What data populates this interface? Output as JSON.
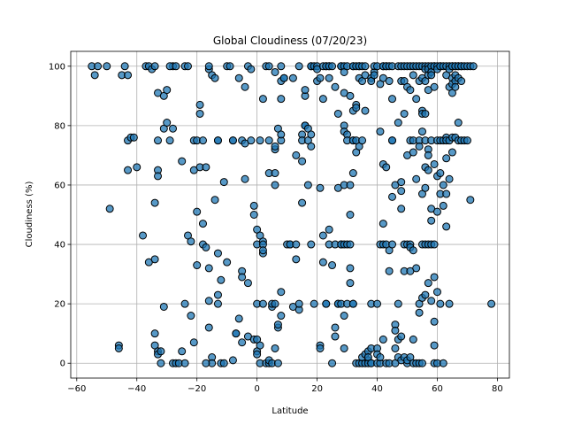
{
  "chart_data": {
    "type": "scatter",
    "title": "Global Cloudiness (07/20/23)",
    "xlabel": "Latitude",
    "ylabel": "Cloudiness (%)",
    "xlim": [
      -62,
      84
    ],
    "ylim": [
      -5,
      105
    ],
    "xticks": [
      -60,
      -40,
      -20,
      0,
      20,
      40,
      60,
      80
    ],
    "yticks": [
      0,
      20,
      40,
      60,
      80,
      100
    ],
    "grid": true,
    "marker_fill": "#1f77b4",
    "marker_edge": "#000000",
    "points": [
      [
        -55,
        100
      ],
      [
        -53,
        100
      ],
      [
        -50,
        100
      ],
      [
        -54,
        97
      ],
      [
        -49,
        52
      ],
      [
        -46,
        6
      ],
      [
        -46,
        5
      ],
      [
        -45,
        97
      ],
      [
        -44,
        100
      ],
      [
        -43,
        75
      ],
      [
        -42,
        76
      ],
      [
        -41,
        76
      ],
      [
        -43,
        97
      ],
      [
        -43,
        65
      ],
      [
        -40,
        66
      ],
      [
        -38,
        43
      ],
      [
        -37,
        100
      ],
      [
        -36,
        100
      ],
      [
        -35,
        99
      ],
      [
        -34,
        100
      ],
      [
        -36,
        34
      ],
      [
        -34,
        35
      ],
      [
        -34,
        54
      ],
      [
        -33,
        91
      ],
      [
        -33,
        75
      ],
      [
        -33,
        65
      ],
      [
        -33,
        63
      ],
      [
        -34,
        10
      ],
      [
        -34,
        6
      ],
      [
        -33,
        4
      ],
      [
        -33,
        3
      ],
      [
        -32,
        0
      ],
      [
        -32,
        4
      ],
      [
        -31,
        90
      ],
      [
        -30,
        92
      ],
      [
        -31,
        19
      ],
      [
        -31,
        79
      ],
      [
        -30,
        81
      ],
      [
        -29,
        75
      ],
      [
        -28,
        79
      ],
      [
        -28,
        100
      ],
      [
        -29,
        100
      ],
      [
        -27,
        100
      ],
      [
        -28,
        0
      ],
      [
        -27,
        0
      ],
      [
        -26,
        0
      ],
      [
        -25,
        68
      ],
      [
        -25,
        4
      ],
      [
        -24,
        20
      ],
      [
        -24,
        0
      ],
      [
        -24,
        100
      ],
      [
        -23,
        100
      ],
      [
        -23,
        43
      ],
      [
        -22,
        41
      ],
      [
        -22,
        16
      ],
      [
        -21,
        7
      ],
      [
        -21,
        65
      ],
      [
        -21,
        75
      ],
      [
        -20,
        75
      ],
      [
        -20,
        33
      ],
      [
        -20,
        51
      ],
      [
        -19,
        66
      ],
      [
        -19,
        87
      ],
      [
        -19,
        84
      ],
      [
        -18,
        75
      ],
      [
        -18,
        47
      ],
      [
        -18,
        40
      ],
      [
        -17,
        66
      ],
      [
        -17,
        39
      ],
      [
        -16,
        99
      ],
      [
        -16,
        100
      ],
      [
        -16,
        32
      ],
      [
        -16,
        21
      ],
      [
        -16,
        12
      ],
      [
        -15,
        2
      ],
      [
        -15,
        0
      ],
      [
        -17,
        0
      ],
      [
        -15,
        97
      ],
      [
        -14,
        96
      ],
      [
        -14,
        55
      ],
      [
        -13,
        75
      ],
      [
        -13,
        75
      ],
      [
        -13,
        37
      ],
      [
        -13,
        23
      ],
      [
        -13,
        20
      ],
      [
        -12,
        28
      ],
      [
        -12,
        0
      ],
      [
        -11,
        61
      ],
      [
        -11,
        0
      ],
      [
        -10,
        34
      ],
      [
        -10,
        100
      ],
      [
        -9,
        100
      ],
      [
        -8,
        75
      ],
      [
        -8,
        75
      ],
      [
        -8,
        1
      ],
      [
        -7,
        10
      ],
      [
        -7,
        10
      ],
      [
        -6,
        15
      ],
      [
        -6,
        96
      ],
      [
        -5,
        75
      ],
      [
        -5,
        31
      ],
      [
        -5,
        29
      ],
      [
        -5,
        7
      ],
      [
        -4,
        93
      ],
      [
        -4,
        74
      ],
      [
        -4,
        62
      ],
      [
        -3,
        27
      ],
      [
        -3,
        9
      ],
      [
        -3,
        100
      ],
      [
        -2,
        99
      ],
      [
        -2,
        75
      ],
      [
        -1,
        53
      ],
      [
        -1,
        50
      ],
      [
        -1,
        8
      ],
      [
        0,
        8
      ],
      [
        0,
        45
      ],
      [
        0,
        40
      ],
      [
        0,
        20
      ],
      [
        0,
        4
      ],
      [
        0,
        3
      ],
      [
        1,
        6
      ],
      [
        1,
        0
      ],
      [
        1,
        75
      ],
      [
        1,
        43
      ],
      [
        2,
        41
      ],
      [
        2,
        40
      ],
      [
        2,
        37
      ],
      [
        2,
        38
      ],
      [
        2,
        20
      ],
      [
        2,
        89
      ],
      [
        3,
        100
      ],
      [
        3,
        0
      ],
      [
        4,
        0
      ],
      [
        4,
        75
      ],
      [
        4,
        64
      ],
      [
        4,
        100
      ],
      [
        4,
        1
      ],
      [
        5,
        0
      ],
      [
        5,
        19
      ],
      [
        5,
        20
      ],
      [
        6,
        5
      ],
      [
        6,
        64
      ],
      [
        6,
        72
      ],
      [
        6,
        73
      ],
      [
        6,
        20
      ],
      [
        6,
        60
      ],
      [
        6,
        98
      ],
      [
        7,
        0
      ],
      [
        7,
        12
      ],
      [
        7,
        13
      ],
      [
        7,
        79
      ],
      [
        8,
        24
      ],
      [
        8,
        16
      ],
      [
        8,
        75
      ],
      [
        8,
        77
      ],
      [
        8,
        100
      ],
      [
        8,
        95
      ],
      [
        8,
        89
      ],
      [
        9,
        96
      ],
      [
        9,
        96
      ],
      [
        10,
        40
      ],
      [
        11,
        40
      ],
      [
        11,
        40
      ],
      [
        12,
        96
      ],
      [
        12,
        19
      ],
      [
        13,
        35
      ],
      [
        13,
        40
      ],
      [
        13,
        70
      ],
      [
        14,
        18
      ],
      [
        14,
        20
      ],
      [
        14,
        100
      ],
      [
        15,
        77
      ],
      [
        15,
        75
      ],
      [
        15,
        68
      ],
      [
        15,
        54
      ],
      [
        16,
        90
      ],
      [
        16,
        92
      ],
      [
        16,
        80
      ],
      [
        16,
        80
      ],
      [
        17,
        79
      ],
      [
        17,
        75
      ],
      [
        17,
        60
      ],
      [
        18,
        100
      ],
      [
        18,
        100
      ],
      [
        18,
        77
      ],
      [
        18,
        73
      ],
      [
        18,
        40
      ],
      [
        19,
        20
      ],
      [
        19,
        100
      ],
      [
        20,
        100
      ],
      [
        20,
        99
      ],
      [
        20,
        95
      ],
      [
        21,
        59
      ],
      [
        21,
        6
      ],
      [
        21,
        5
      ],
      [
        21,
        96
      ],
      [
        22,
        100
      ],
      [
        22,
        89
      ],
      [
        22,
        43
      ],
      [
        22,
        34
      ],
      [
        23,
        100
      ],
      [
        23,
        100
      ],
      [
        23,
        20
      ],
      [
        23,
        20
      ],
      [
        24,
        100
      ],
      [
        24,
        100
      ],
      [
        24,
        96
      ],
      [
        24,
        45
      ],
      [
        24,
        40
      ],
      [
        25,
        33
      ],
      [
        25,
        0
      ],
      [
        25,
        100
      ],
      [
        26,
        9
      ],
      [
        26,
        12
      ],
      [
        26,
        40
      ],
      [
        26,
        93
      ],
      [
        27,
        84
      ],
      [
        27,
        59
      ],
      [
        27,
        20
      ],
      [
        27,
        20
      ],
      [
        28,
        100
      ],
      [
        28,
        100
      ],
      [
        28,
        40
      ],
      [
        28,
        40
      ],
      [
        28,
        20
      ],
      [
        29,
        100
      ],
      [
        29,
        98
      ],
      [
        29,
        91
      ],
      [
        29,
        80
      ],
      [
        29,
        78
      ],
      [
        29,
        60
      ],
      [
        29,
        40
      ],
      [
        29,
        16
      ],
      [
        29,
        5
      ],
      [
        30,
        100
      ],
      [
        30,
        77
      ],
      [
        30,
        75
      ],
      [
        30,
        40
      ],
      [
        30,
        20
      ],
      [
        31,
        60
      ],
      [
        31,
        50
      ],
      [
        31,
        40
      ],
      [
        31,
        32
      ],
      [
        31,
        27
      ],
      [
        31,
        90
      ],
      [
        32,
        100
      ],
      [
        32,
        100
      ],
      [
        32,
        85
      ],
      [
        32,
        75
      ],
      [
        32,
        75
      ],
      [
        32,
        64
      ],
      [
        32,
        20
      ],
      [
        32,
        20
      ],
      [
        33,
        100
      ],
      [
        33,
        87
      ],
      [
        33,
        86
      ],
      [
        33,
        75
      ],
      [
        33,
        71
      ],
      [
        33,
        0
      ],
      [
        34,
        100
      ],
      [
        34,
        100
      ],
      [
        34,
        96
      ],
      [
        34,
        73
      ],
      [
        34,
        0
      ],
      [
        35,
        100
      ],
      [
        35,
        95
      ],
      [
        35,
        75
      ],
      [
        35,
        0
      ],
      [
        35,
        2
      ],
      [
        36,
        100
      ],
      [
        36,
        97
      ],
      [
        36,
        85
      ],
      [
        36,
        0
      ],
      [
        36,
        3
      ],
      [
        37,
        1
      ],
      [
        37,
        0
      ],
      [
        37,
        4
      ],
      [
        37,
        2
      ],
      [
        38,
        96
      ],
      [
        38,
        95
      ],
      [
        38,
        20
      ],
      [
        38,
        0
      ],
      [
        38,
        5
      ],
      [
        38,
        0
      ],
      [
        39,
        98
      ],
      [
        39,
        100
      ],
      [
        39,
        97
      ],
      [
        40,
        100
      ],
      [
        40,
        20
      ],
      [
        40,
        5
      ],
      [
        40,
        0
      ],
      [
        40,
        3
      ],
      [
        41,
        94
      ],
      [
        41,
        78
      ],
      [
        41,
        40
      ],
      [
        41,
        0
      ],
      [
        41,
        2
      ],
      [
        42,
        100
      ],
      [
        42,
        100
      ],
      [
        42,
        96
      ],
      [
        42,
        67
      ],
      [
        42,
        47
      ],
      [
        42,
        40
      ],
      [
        42,
        8
      ],
      [
        43,
        100
      ],
      [
        43,
        100
      ],
      [
        43,
        66
      ],
      [
        43,
        40
      ],
      [
        43,
        0
      ],
      [
        44,
        100
      ],
      [
        44,
        95
      ],
      [
        44,
        38
      ],
      [
        44,
        31
      ],
      [
        44,
        0
      ],
      [
        45,
        100
      ],
      [
        45,
        89
      ],
      [
        45,
        75
      ],
      [
        45,
        75
      ],
      [
        45,
        56
      ],
      [
        45,
        40
      ],
      [
        46,
        60
      ],
      [
        46,
        13
      ],
      [
        46,
        11
      ],
      [
        46,
        5
      ],
      [
        46,
        0
      ],
      [
        47,
        100
      ],
      [
        47,
        81
      ],
      [
        47,
        20
      ],
      [
        47,
        8
      ],
      [
        47,
        2
      ],
      [
        48,
        100
      ],
      [
        48,
        95
      ],
      [
        48,
        61
      ],
      [
        48,
        58
      ],
      [
        48,
        52
      ],
      [
        48,
        9
      ],
      [
        48,
        1
      ],
      [
        49,
        100
      ],
      [
        49,
        95
      ],
      [
        49,
        84
      ],
      [
        49,
        40
      ],
      [
        49,
        31
      ],
      [
        49,
        2
      ],
      [
        50,
        100
      ],
      [
        50,
        93
      ],
      [
        50,
        70
      ],
      [
        50,
        40
      ],
      [
        50,
        0
      ],
      [
        50,
        1
      ],
      [
        51,
        100
      ],
      [
        51,
        92
      ],
      [
        51,
        75
      ],
      [
        51,
        40
      ],
      [
        51,
        39
      ],
      [
        51,
        31
      ],
      [
        51,
        2
      ],
      [
        52,
        100
      ],
      [
        52,
        97
      ],
      [
        52,
        75
      ],
      [
        52,
        71
      ],
      [
        52,
        38
      ],
      [
        52,
        8
      ],
      [
        52,
        0
      ],
      [
        53,
        100
      ],
      [
        53,
        89
      ],
      [
        53,
        62
      ],
      [
        53,
        32
      ],
      [
        53,
        0
      ],
      [
        54,
        100
      ],
      [
        54,
        95
      ],
      [
        54,
        75
      ],
      [
        54,
        73
      ],
      [
        54,
        20
      ],
      [
        54,
        17
      ],
      [
        54,
        0
      ],
      [
        55,
        100
      ],
      [
        55,
        96
      ],
      [
        55,
        85
      ],
      [
        55,
        84
      ],
      [
        55,
        78
      ],
      [
        55,
        57
      ],
      [
        55,
        40
      ],
      [
        55,
        22
      ],
      [
        55,
        0
      ],
      [
        56,
        100
      ],
      [
        56,
        99
      ],
      [
        56,
        95
      ],
      [
        56,
        84
      ],
      [
        56,
        75
      ],
      [
        56,
        66
      ],
      [
        56,
        59
      ],
      [
        56,
        40
      ],
      [
        56,
        23
      ],
      [
        57,
        100
      ],
      [
        57,
        99
      ],
      [
        57,
        97
      ],
      [
        57,
        92
      ],
      [
        57,
        72
      ],
      [
        57,
        70
      ],
      [
        57,
        65
      ],
      [
        57,
        40
      ],
      [
        57,
        27
      ],
      [
        58,
        100
      ],
      [
        58,
        98
      ],
      [
        58,
        97
      ],
      [
        58,
        75
      ],
      [
        58,
        52
      ],
      [
        58,
        48
      ],
      [
        58,
        40
      ],
      [
        58,
        21
      ],
      [
        59,
        100
      ],
      [
        59,
        100
      ],
      [
        59,
        93
      ],
      [
        59,
        67
      ],
      [
        59,
        40
      ],
      [
        59,
        29
      ],
      [
        59,
        14
      ],
      [
        59,
        6
      ],
      [
        59,
        0
      ],
      [
        60,
        100
      ],
      [
        60,
        99
      ],
      [
        60,
        75
      ],
      [
        60,
        63
      ],
      [
        60,
        51
      ],
      [
        60,
        24
      ],
      [
        60,
        0
      ],
      [
        61,
        100
      ],
      [
        61,
        100
      ],
      [
        61,
        75
      ],
      [
        61,
        64
      ],
      [
        61,
        57
      ],
      [
        61,
        20
      ],
      [
        62,
        100
      ],
      [
        62,
        75
      ],
      [
        62,
        60
      ],
      [
        62,
        53
      ],
      [
        62,
        0
      ],
      [
        63,
        100
      ],
      [
        63,
        97
      ],
      [
        63,
        76
      ],
      [
        63,
        75
      ],
      [
        63,
        69
      ],
      [
        63,
        57
      ],
      [
        63,
        46
      ],
      [
        64,
        100
      ],
      [
        64,
        99
      ],
      [
        64,
        93
      ],
      [
        64,
        75
      ],
      [
        64,
        62
      ],
      [
        64,
        20
      ],
      [
        65,
        100
      ],
      [
        65,
        100
      ],
      [
        65,
        96
      ],
      [
        65,
        94
      ],
      [
        65,
        91
      ],
      [
        65,
        76
      ],
      [
        65,
        71
      ],
      [
        66,
        100
      ],
      [
        66,
        100
      ],
      [
        66,
        97
      ],
      [
        66,
        95
      ],
      [
        66,
        93
      ],
      [
        66,
        76
      ],
      [
        67,
        100
      ],
      [
        67,
        100
      ],
      [
        67,
        96
      ],
      [
        67,
        81
      ],
      [
        67,
        75
      ],
      [
        68,
        100
      ],
      [
        68,
        100
      ],
      [
        68,
        95
      ],
      [
        68,
        75
      ],
      [
        69,
        100
      ],
      [
        69,
        75
      ],
      [
        70,
        100
      ],
      [
        70,
        75
      ],
      [
        71,
        100
      ],
      [
        71,
        55
      ],
      [
        78,
        20
      ],
      [
        72,
        100
      ]
    ]
  }
}
